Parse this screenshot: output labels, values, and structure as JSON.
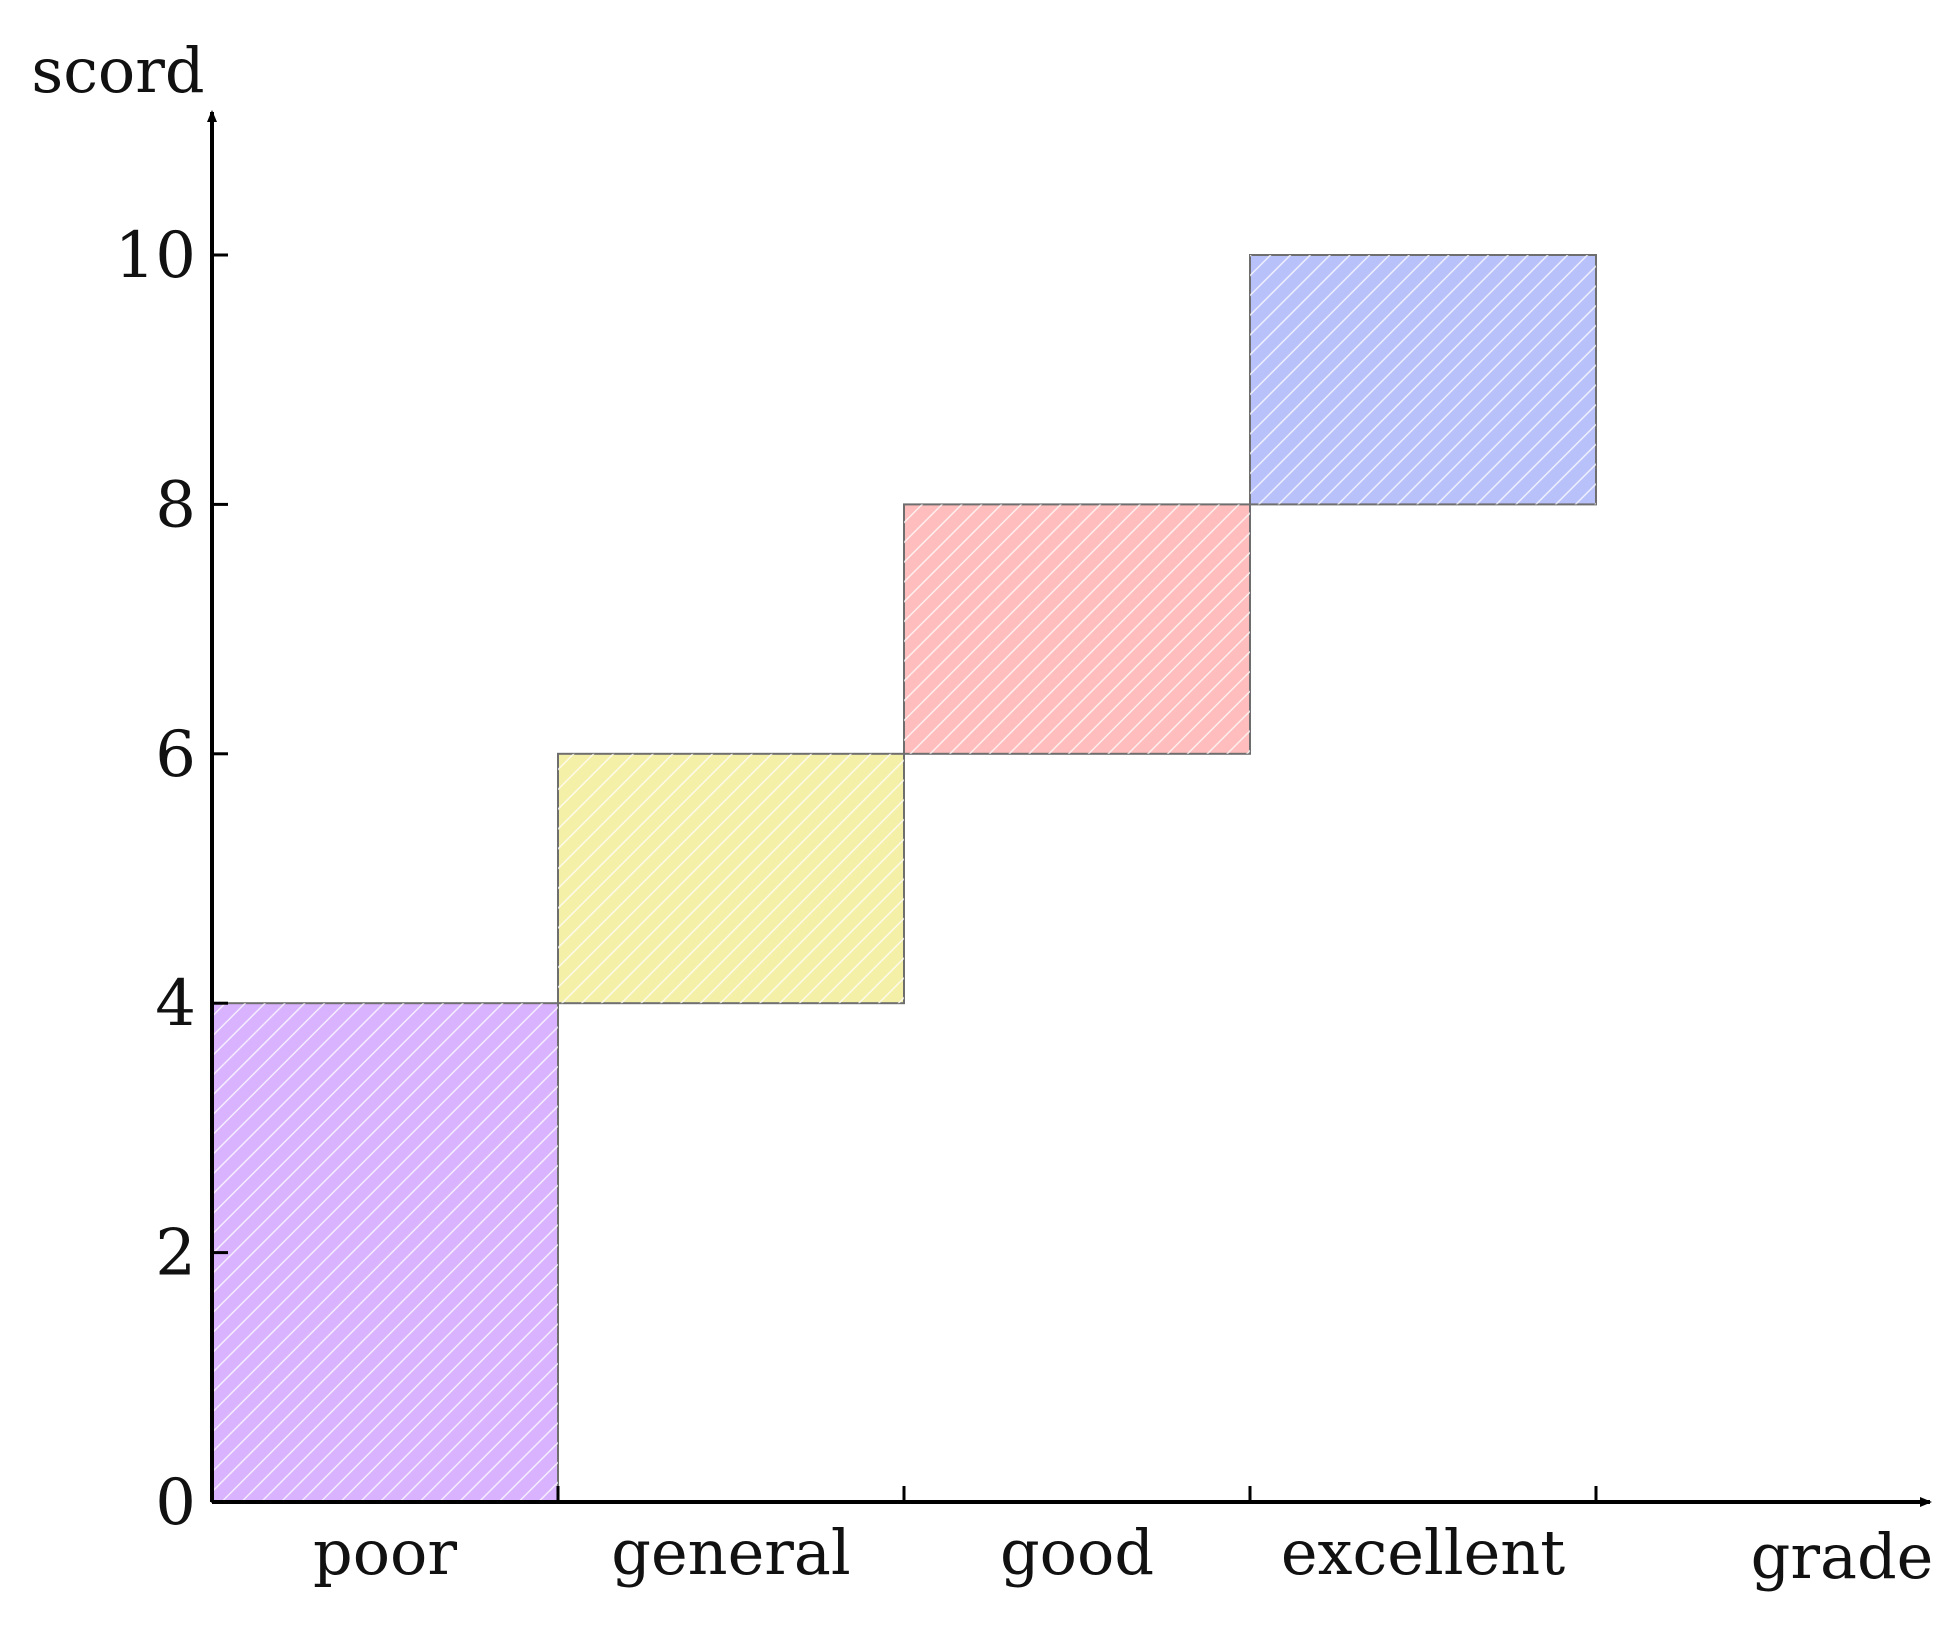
{
  "chart_data": {
    "type": "bar",
    "title": "",
    "xlabel": "grade",
    "ylabel": "scord",
    "categories": [
      "poor",
      "general",
      "good",
      "excellent"
    ],
    "ranges": [
      {
        "category": "poor",
        "low": 0,
        "high": 4,
        "color": "#d9b3ff"
      },
      {
        "category": "general",
        "low": 4,
        "high": 6,
        "color": "#f5f0a8"
      },
      {
        "category": "good",
        "low": 6,
        "high": 8,
        "color": "#ffbdbd"
      },
      {
        "category": "excellent",
        "low": 8,
        "high": 10,
        "color": "#b9c1fa"
      }
    ],
    "yticks": [
      "0",
      "2",
      "4",
      "6",
      "8",
      "10"
    ],
    "ylim": [
      0,
      10
    ],
    "grid": false,
    "legend": "none"
  }
}
